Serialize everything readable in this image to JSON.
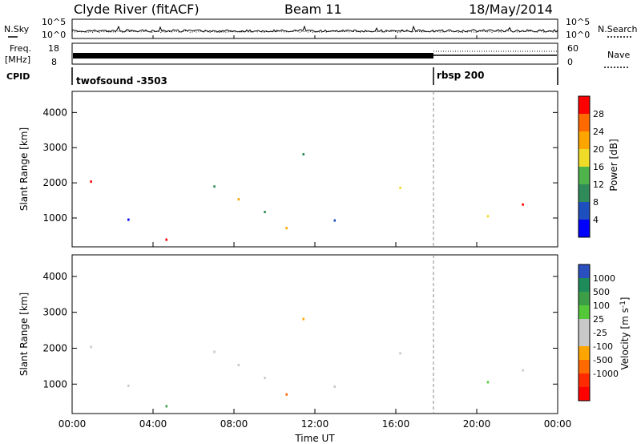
{
  "header": {
    "title": "Clyde River (fitACF)",
    "beam": "Beam 11",
    "date": "18/May/2014"
  },
  "left_labels": {
    "nsky": "N.Sky",
    "freq": "Freq.",
    "freq_unit": "[MHz]",
    "cpid": "CPID"
  },
  "right_labels": {
    "nsearch": "N.Search",
    "nave": "Nave"
  },
  "noise_panel": {
    "left_ticks": [
      "10^5",
      "10^0"
    ],
    "right_ticks": [
      "10^5",
      "10^0"
    ]
  },
  "freq_panel": {
    "left_ticks": [
      "18",
      "8"
    ],
    "right_ticks": [
      "60",
      "0"
    ]
  },
  "cpid_panel": {
    "segments": [
      {
        "label": "twofsound -3503",
        "start_hour": 0
      },
      {
        "label": "rbsp 200",
        "start_hour": 18
      }
    ]
  },
  "colors": {
    "power_scale": [
      "#0000ff",
      "#1e4fbf",
      "#2f8c5a",
      "#4db34a",
      "#f0dc28",
      "#ffa500",
      "#ff6a00",
      "#ff0000"
    ],
    "velocity_scale": [
      "#2a4fbf",
      "#1e8c5a",
      "#3c9e46",
      "#55c83a",
      "#c8c8c8",
      "#c8c8c8",
      "#ffa500",
      "#ff6a00",
      "#ff2a00",
      "#ff0000"
    ]
  },
  "chart_data": [
    {
      "type": "heatmap",
      "name": "power",
      "ylabel": "Slant Range [km]",
      "ylim": [
        180,
        4600
      ],
      "yticks": [
        1000,
        2000,
        3000,
        4000
      ],
      "colorbar_label": "Power [dB]",
      "colorbar_ticks": [
        4,
        8,
        12,
        16,
        20,
        24,
        28
      ]
    },
    {
      "type": "heatmap",
      "name": "velocity",
      "ylabel": "Slant Range [km]",
      "ylim": [
        180,
        4600
      ],
      "yticks": [
        1000,
        2000,
        3000,
        4000
      ],
      "colorbar_label": "Velocity [m s",
      "colorbar_label_sup": "-1",
      "colorbar_label_end": "]",
      "colorbar_ticks": [
        "1000",
        "500",
        "100",
        "25",
        "-25",
        "-100",
        "-500",
        "-1000"
      ],
      "xlabel": "Time UT",
      "xticks": [
        "00:00",
        "04:00",
        "08:00",
        "12:00",
        "16:00",
        "20:00",
        "00:00"
      ],
      "xlim": [
        0,
        24
      ]
    }
  ]
}
